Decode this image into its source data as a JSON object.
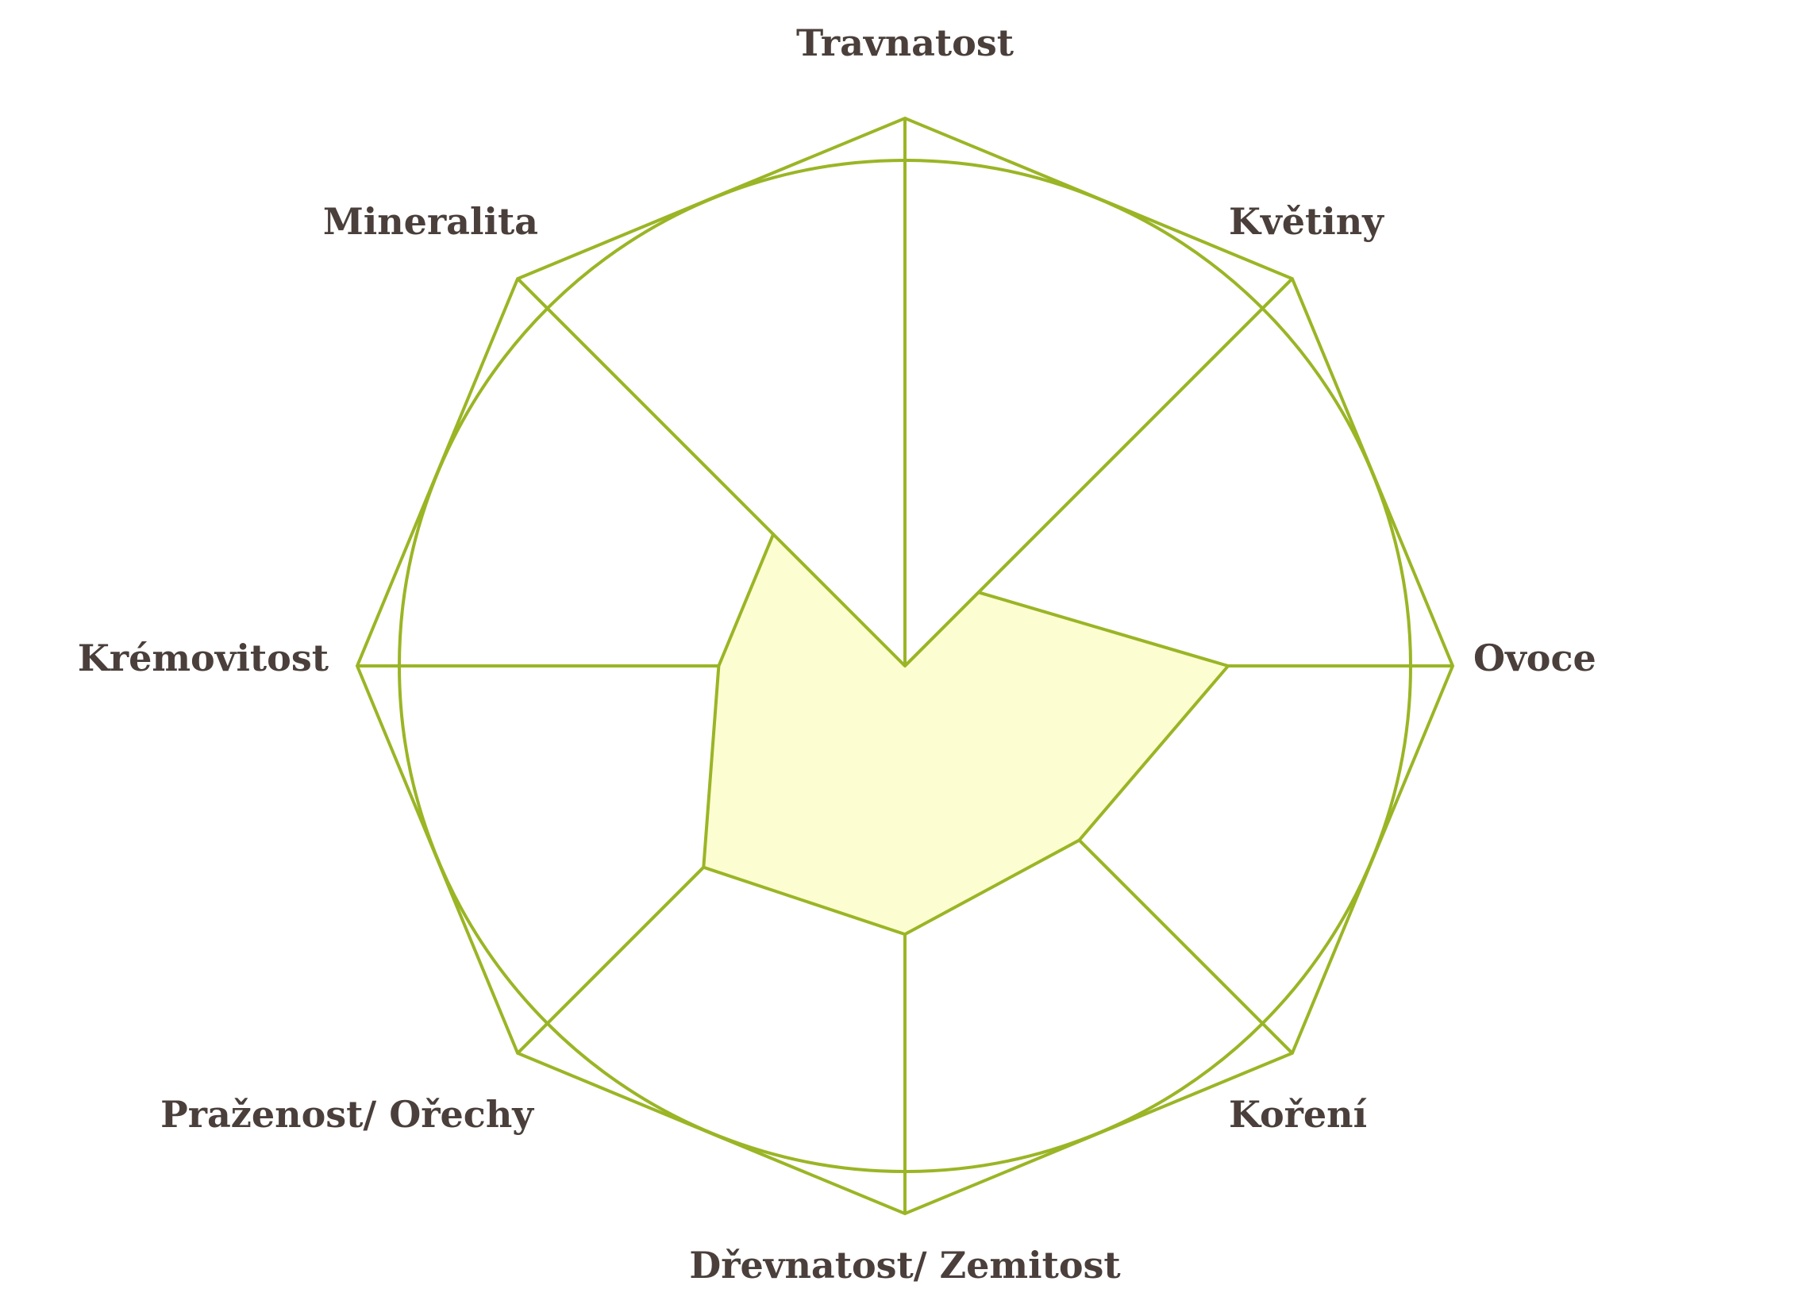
{
  "chart_data": {
    "type": "radar",
    "axes": [
      "Travnatost",
      "Květiny",
      "Ovoce",
      "Koření",
      "Dřevnatost/ Zemitost",
      "Praženost/ Ořechy",
      "Krémovitost",
      "Mineralita"
    ],
    "values": [
      0.0,
      0.19,
      0.59,
      0.45,
      0.49,
      0.52,
      0.34,
      0.34
    ],
    "range": [
      0,
      1
    ],
    "grid": "octagon outline plus circle",
    "colors": {
      "line": "#9ab525",
      "fill": "#fdfdd2",
      "text": "#4a3f3b"
    }
  }
}
